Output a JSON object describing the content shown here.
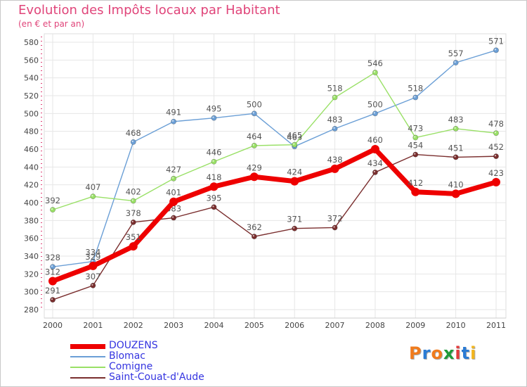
{
  "chart_data": {
    "type": "line",
    "title": "Evolution des Impôts locaux par Habitant",
    "subtitle": "(en € et par an)",
    "xlabel": "",
    "ylabel": "",
    "categories": [
      "2000",
      "2001",
      "2002",
      "2003",
      "2004",
      "2005",
      "2006",
      "2007",
      "2008",
      "2009",
      "2010",
      "2011"
    ],
    "ylim": [
      280,
      580
    ],
    "yticks": [
      280,
      300,
      320,
      340,
      360,
      380,
      400,
      420,
      440,
      460,
      480,
      500,
      520,
      540,
      560,
      580
    ],
    "series": [
      {
        "name": "DOUZENS",
        "color": "#ee0000",
        "values": [
          312,
          329,
          351,
          401,
          418,
          429,
          424,
          438,
          460,
          412,
          410,
          423
        ],
        "labels": [
          "312",
          "329",
          "351",
          "401",
          "418",
          "429",
          "424",
          "438",
          "460",
          "412",
          "410",
          "423"
        ]
      },
      {
        "name": "Blomac",
        "color": "#6b9fd6",
        "values": [
          328,
          334,
          468,
          491,
          495,
          500,
          463,
          483,
          500,
          518,
          557,
          571
        ],
        "labels": [
          "328",
          "334",
          "468",
          "491",
          "495",
          "500",
          "463",
          "483",
          "500",
          "518",
          "557",
          "571"
        ]
      },
      {
        "name": "Comigne",
        "color": "#99e066",
        "values": [
          392,
          407,
          402,
          427,
          446,
          464,
          465,
          518,
          546,
          473,
          483,
          478
        ],
        "labels": [
          "392",
          "407",
          "402",
          "427",
          "446",
          "464",
          "465",
          "518",
          "546",
          "473",
          "483",
          "478"
        ]
      },
      {
        "name": "Saint-Couat-d'Aude",
        "color": "#7a2e2e",
        "values": [
          291,
          307,
          378,
          383,
          395,
          362,
          371,
          372,
          434,
          454,
          451,
          452
        ],
        "labels": [
          "291",
          "307",
          "378",
          "383",
          "395",
          "362",
          "371",
          "372",
          "434",
          "454",
          "451",
          "452"
        ]
      }
    ]
  },
  "logo": {
    "letters": [
      "P",
      "r",
      "o",
      "x",
      "i",
      "t",
      "i"
    ],
    "colors": [
      "#f07b1d",
      "#2a7bd4",
      "#f07b1d",
      "#1f9a3a",
      "#e23b3b",
      "#2a7bd4",
      "#f2b51e"
    ]
  }
}
